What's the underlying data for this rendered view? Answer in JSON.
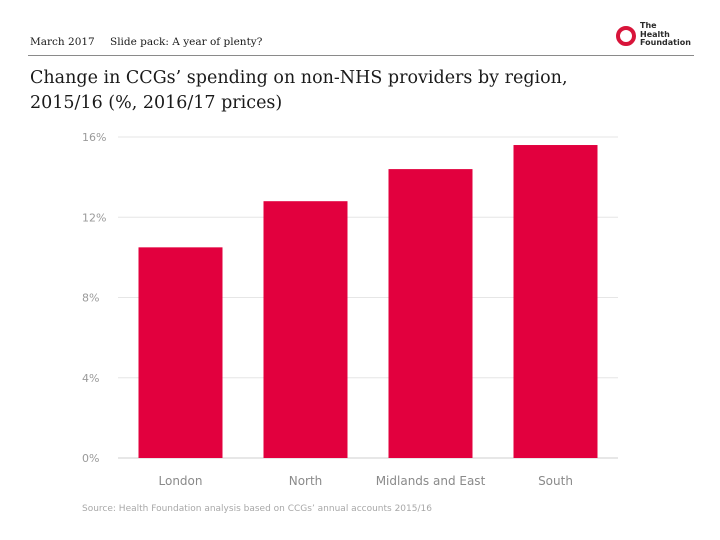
{
  "header": {
    "date": "March 2017",
    "deck": "Slide pack: A year of plenty?",
    "logo_lines": [
      "The",
      "Health",
      "Foundation"
    ]
  },
  "title": "Change in CCGs’ spending on non-NHS providers by region, 2015/16 (%, 2016/17 prices)",
  "source": "Source: Health Foundation analysis based on CCGs’ annual accounts 2015/16",
  "colors": {
    "bar": "#e2003e",
    "logo": "#d8143a",
    "grid": "#e6e6e6"
  },
  "chart_data": {
    "type": "bar",
    "categories": [
      "London",
      "North",
      "Midlands and East",
      "South"
    ],
    "values": [
      10.5,
      12.8,
      14.4,
      15.6
    ],
    "ylim": [
      0,
      16
    ],
    "yticks": [
      0,
      4,
      8,
      12,
      16
    ],
    "ytick_labels": [
      "0%",
      "4%",
      "8%",
      "12%",
      "16%"
    ],
    "xlabel": "",
    "ylabel": "",
    "grid": true
  }
}
